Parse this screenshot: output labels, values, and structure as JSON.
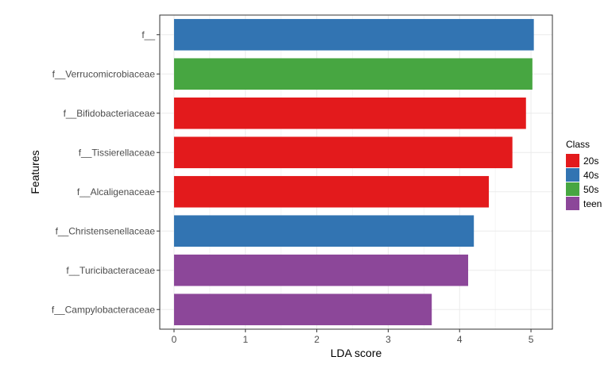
{
  "chart_data": {
    "type": "bar",
    "orientation": "horizontal",
    "xlabel": "LDA score",
    "ylabel": "Features",
    "xlim": [
      -0.2,
      5.3
    ],
    "xticks": [
      0,
      1,
      2,
      3,
      4,
      5
    ],
    "grid": true,
    "legend": {
      "title": "Class",
      "placement": "right",
      "entries": [
        {
          "label": "20s",
          "color": "#e31a1c"
        },
        {
          "label": "40s",
          "color": "#3274b2"
        },
        {
          "label": "50s",
          "color": "#47a641"
        },
        {
          "label": "teen",
          "color": "#8c4799"
        }
      ]
    },
    "bars": [
      {
        "feature": "f__",
        "value": 5.04,
        "class": "40s"
      },
      {
        "feature": "f__Verrucomicrobiaceae",
        "value": 5.02,
        "class": "50s"
      },
      {
        "feature": "f__Bifidobacteriaceae",
        "value": 4.93,
        "class": "20s"
      },
      {
        "feature": "f__Tissierellaceae",
        "value": 4.74,
        "class": "20s"
      },
      {
        "feature": "f__Alcaligenaceae",
        "value": 4.41,
        "class": "20s"
      },
      {
        "feature": "f__Christensenellaceae",
        "value": 4.2,
        "class": "40s"
      },
      {
        "feature": "f__Turicibacteraceae",
        "value": 4.12,
        "class": "teen"
      },
      {
        "feature": "f__Campylobacteraceae",
        "value": 3.61,
        "class": "teen"
      }
    ]
  }
}
